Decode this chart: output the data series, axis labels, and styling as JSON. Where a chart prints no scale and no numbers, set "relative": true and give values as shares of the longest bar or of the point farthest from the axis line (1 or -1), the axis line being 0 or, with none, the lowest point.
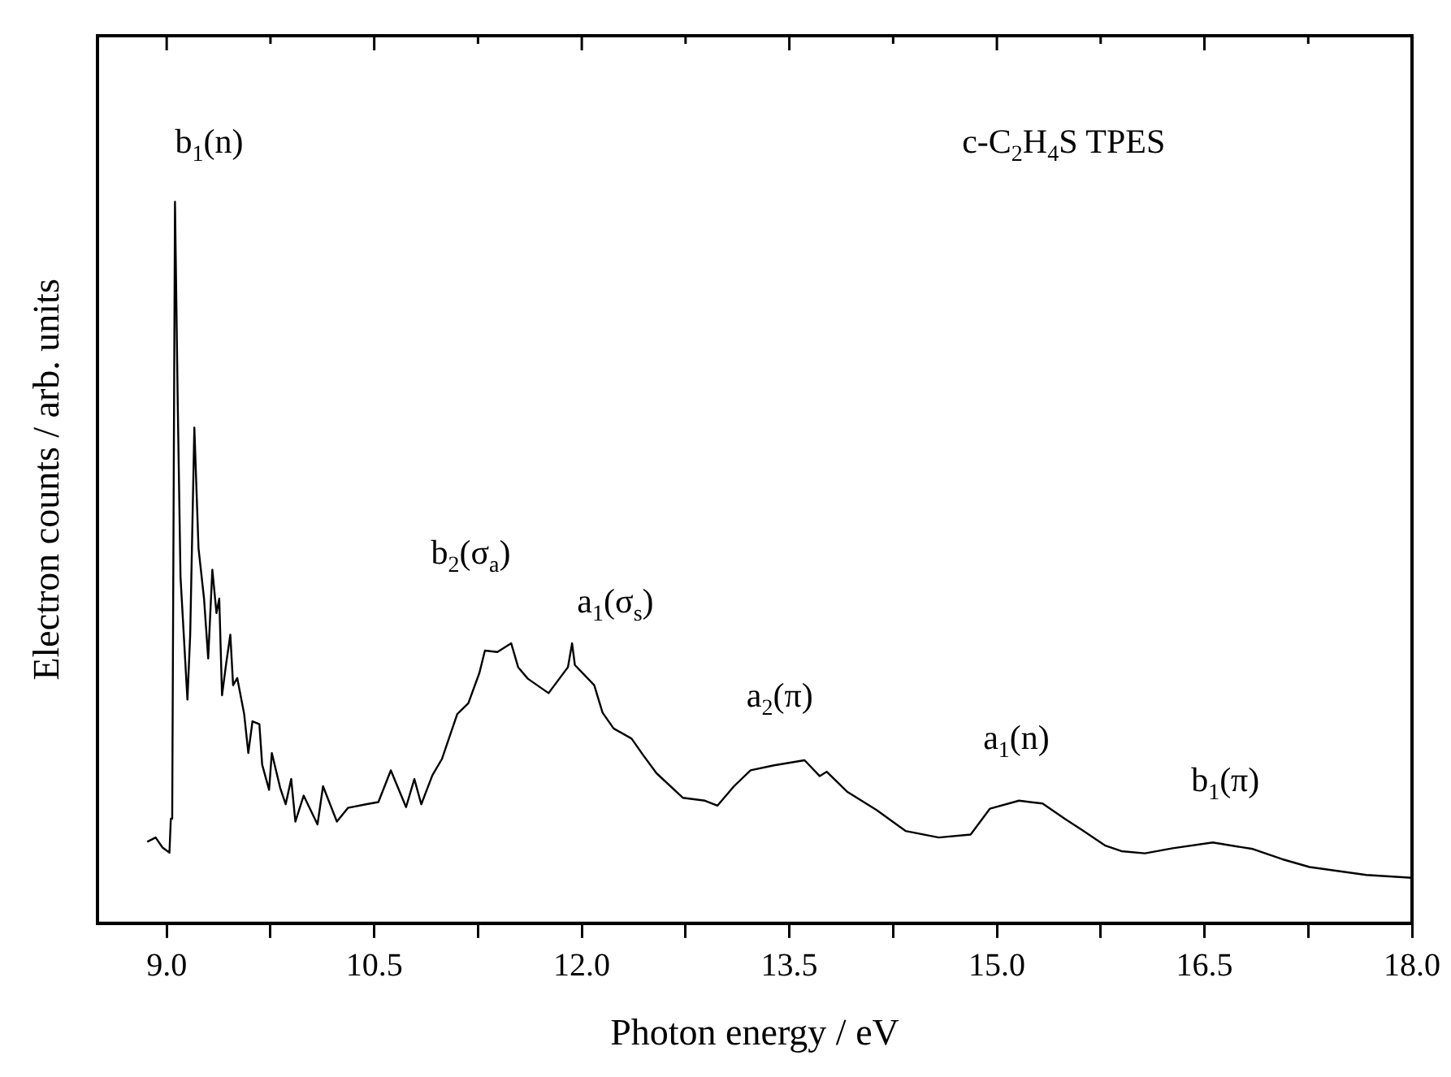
{
  "chart_data": {
    "type": "line",
    "title": "c-C$_{2}$H$_{4}$S  TPES",
    "xlabel": "Photon energy / eV",
    "ylabel": "Electron counts / arb. units",
    "relative": true,
    "xlim": [
      8.5,
      18.0
    ],
    "xticks": [
      {
        "value": 9,
        "label": "9.0"
      },
      {
        "value": 9.75,
        "label": null
      },
      {
        "value": 10.5,
        "label": "10.5"
      },
      {
        "value": 11.25,
        "label": null
      },
      {
        "value": 12,
        "label": "12.0"
      },
      {
        "value": 12.75,
        "label": null
      },
      {
        "value": 13.5,
        "label": "13.5"
      },
      {
        "value": 14.25,
        "label": null
      },
      {
        "value": 15,
        "label": "15.0"
      },
      {
        "value": 15.75,
        "label": null
      },
      {
        "value": 16.5,
        "label": "16.5"
      },
      {
        "value": 17.25,
        "label": null
      },
      {
        "value": 18,
        "label": "18.0"
      }
    ],
    "marker": "none",
    "line_style": "solid",
    "legend": false,
    "series": [
      {
        "color": "#000000",
        "x": [
          8.86,
          8.92,
          8.97,
          9.02,
          9.03,
          9.04,
          9.06,
          9.08,
          9.1,
          9.15,
          9.17,
          9.2,
          9.23,
          9.27,
          9.3,
          9.33,
          9.36,
          9.38,
          9.4,
          9.43,
          9.46,
          9.48,
          9.51,
          9.56,
          9.59,
          9.62,
          9.67,
          9.69,
          9.74,
          9.76,
          9.82,
          9.86,
          9.9,
          9.93,
          9.99,
          10.09,
          10.13,
          10.23,
          10.31,
          10.44,
          10.53,
          10.62,
          10.73,
          10.79,
          10.84,
          10.92,
          10.99,
          11.1,
          11.18,
          11.26,
          11.3,
          11.39,
          11.49,
          11.54,
          11.61,
          11.76,
          11.9,
          11.93,
          11.95,
          12.09,
          12.15,
          12.23,
          12.36,
          12.44,
          12.54,
          12.73,
          12.89,
          12.98,
          13.1,
          13.22,
          13.39,
          13.61,
          13.72,
          13.77,
          13.92,
          14.13,
          14.34,
          14.58,
          14.81,
          14.95,
          15.16,
          15.33,
          15.49,
          15.61,
          15.78,
          15.9,
          16.07,
          16.27,
          16.56,
          16.85,
          17.06,
          17.26,
          17.67,
          18.0
        ],
        "values": [
          0.113,
          0.119,
          0.105,
          0.098,
          0.145,
          0.15,
          1.0,
          0.72,
          0.48,
          0.31,
          0.4,
          0.687,
          0.52,
          0.45,
          0.367,
          0.49,
          0.43,
          0.45,
          0.316,
          0.36,
          0.4,
          0.33,
          0.34,
          0.29,
          0.236,
          0.28,
          0.276,
          0.22,
          0.185,
          0.236,
          0.188,
          0.165,
          0.2,
          0.141,
          0.177,
          0.137,
          0.19,
          0.141,
          0.16,
          0.165,
          0.168,
          0.212,
          0.161,
          0.2,
          0.165,
          0.205,
          0.228,
          0.29,
          0.305,
          0.347,
          0.378,
          0.376,
          0.388,
          0.355,
          0.339,
          0.319,
          0.355,
          0.388,
          0.358,
          0.33,
          0.292,
          0.27,
          0.256,
          0.234,
          0.208,
          0.174,
          0.17,
          0.163,
          0.19,
          0.212,
          0.219,
          0.226,
          0.204,
          0.21,
          0.182,
          0.157,
          0.128,
          0.119,
          0.123,
          0.159,
          0.17,
          0.166,
          0.145,
          0.13,
          0.108,
          0.1,
          0.097,
          0.104,
          0.112,
          0.103,
          0.089,
          0.078,
          0.067,
          0.063
        ]
      }
    ],
    "annotations": [
      "b$_{1}$(n)",
      "b$_{2}$(σ$_{a}$)",
      "a$_{1}$(σ$_{s}$)",
      "a$_{2}$(π)",
      "a$_{1}$(n)",
      "b$_{1}$(π)"
    ]
  }
}
